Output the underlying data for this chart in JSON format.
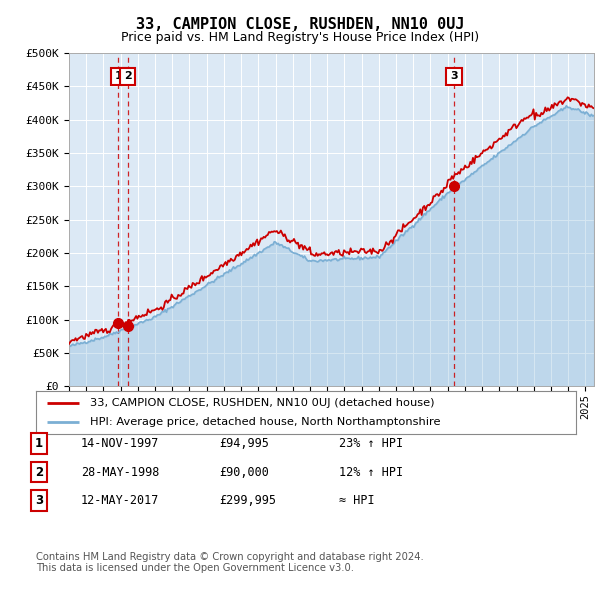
{
  "title": "33, CAMPION CLOSE, RUSHDEN, NN10 0UJ",
  "subtitle": "Price paid vs. HM Land Registry's House Price Index (HPI)",
  "ylabel_ticks": [
    "£0",
    "£50K",
    "£100K",
    "£150K",
    "£200K",
    "£250K",
    "£300K",
    "£350K",
    "£400K",
    "£450K",
    "£500K"
  ],
  "ytick_values": [
    0,
    50000,
    100000,
    150000,
    200000,
    250000,
    300000,
    350000,
    400000,
    450000,
    500000
  ],
  "ylim": [
    0,
    500000
  ],
  "sale_points": [
    {
      "date_num": 1997.87,
      "price": 94995,
      "label": "1"
    },
    {
      "date_num": 1998.4,
      "price": 90000,
      "label": "2"
    },
    {
      "date_num": 2017.36,
      "price": 299995,
      "label": "3"
    }
  ],
  "legend_line1": "33, CAMPION CLOSE, RUSHDEN, NN10 0UJ (detached house)",
  "legend_line2": "HPI: Average price, detached house, North Northamptonshire",
  "table_rows": [
    {
      "num": "1",
      "date": "14-NOV-1997",
      "price": "£94,995",
      "change": "23% ↑ HPI"
    },
    {
      "num": "2",
      "date": "28-MAY-1998",
      "price": "£90,000",
      "change": "12% ↑ HPI"
    },
    {
      "num": "3",
      "date": "12-MAY-2017",
      "price": "£299,995",
      "change": "≈ HPI"
    }
  ],
  "footnote1": "Contains HM Land Registry data © Crown copyright and database right 2024.",
  "footnote2": "This data is licensed under the Open Government Licence v3.0.",
  "red_color": "#cc0000",
  "blue_color": "#7bafd4",
  "blue_fill": "#dce9f5",
  "dashed_color": "#cc0000",
  "background_color": "#ffffff",
  "plot_bg_color": "#dce9f5",
  "grid_color": "#ffffff"
}
